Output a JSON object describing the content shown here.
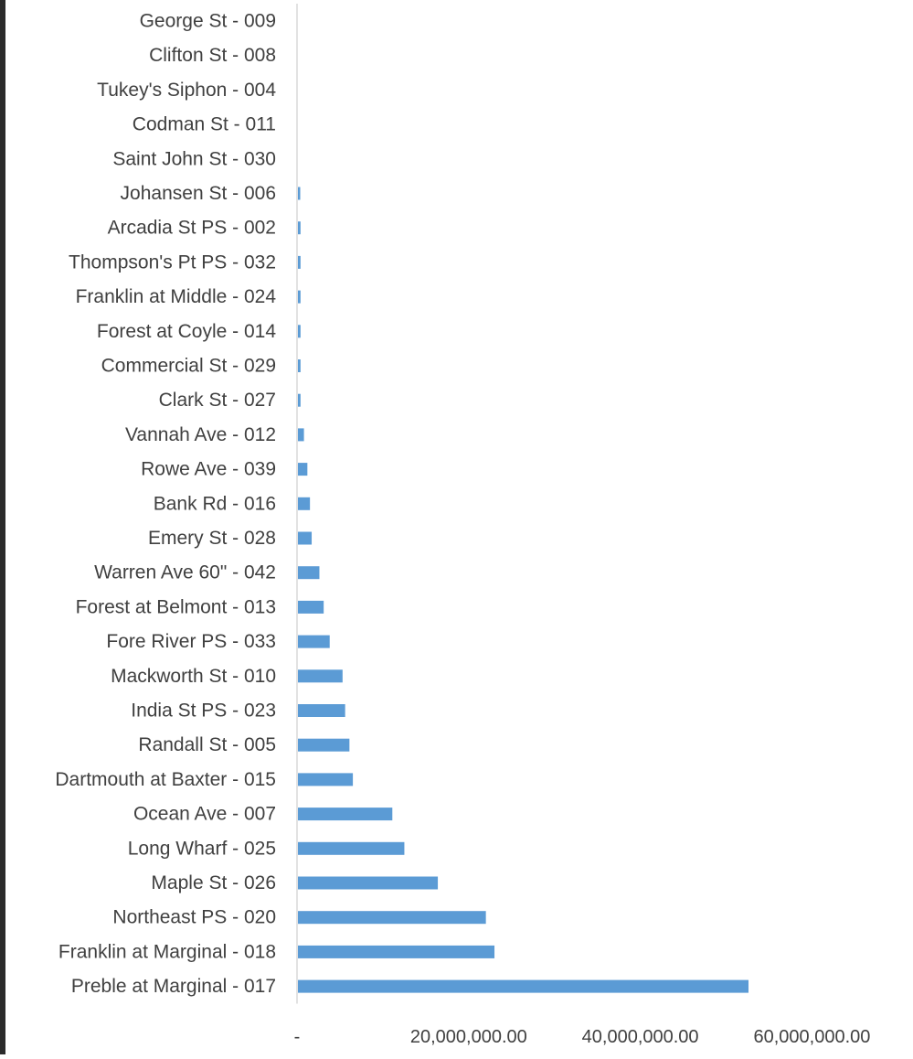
{
  "chart_data": {
    "type": "bar",
    "orientation": "horizontal",
    "title": "",
    "xlabel": "",
    "ylabel": "",
    "bar_color": "#5b9bd5",
    "axis_color": "#d9d9d9",
    "text_color": "#404040",
    "grid": false,
    "legend": "none",
    "xlim": [
      0,
      70000000
    ],
    "x_ticks": [
      {
        "value": 0,
        "label": "-"
      },
      {
        "value": 20000000,
        "label": "20,000,000.00"
      },
      {
        "value": 40000000,
        "label": "40,000,000.00"
      },
      {
        "value": 60000000,
        "label": "60,000,000.00"
      }
    ],
    "categories": [
      "George St - 009",
      "Clifton St - 008",
      "Tukey's Siphon - 004",
      "Codman St - 011",
      "Saint John St - 030",
      "Johansen St - 006",
      "Arcadia St PS - 002",
      "Thompson's Pt PS - 032",
      "Franklin at Middle - 024",
      "Forest at Coyle - 014",
      "Commercial St - 029",
      "Clark St - 027",
      "Vannah Ave - 012",
      "Rowe Ave - 039",
      "Bank Rd - 016",
      "Emery St - 028",
      "Warren Ave 60\" - 042",
      "Forest at Belmont - 013",
      "Fore River PS - 033",
      "Mackworth St - 010",
      "India St PS - 023",
      "Randall St - 005",
      "Dartmouth at Baxter - 015",
      "Ocean Ave - 007",
      "Long Wharf - 025",
      "Maple St - 026",
      "Northeast PS - 020",
      "Franklin at Marginal - 018",
      "Preble at Marginal - 017"
    ],
    "values": [
      0,
      0,
      0,
      0,
      0,
      50000,
      300000,
      300000,
      300000,
      300000,
      300000,
      300000,
      700000,
      1100000,
      1400000,
      1600000,
      2500000,
      3000000,
      3700000,
      5200000,
      5500000,
      6000000,
      6400000,
      11000000,
      12400000,
      16300000,
      21900000,
      22900000,
      52500000
    ]
  }
}
